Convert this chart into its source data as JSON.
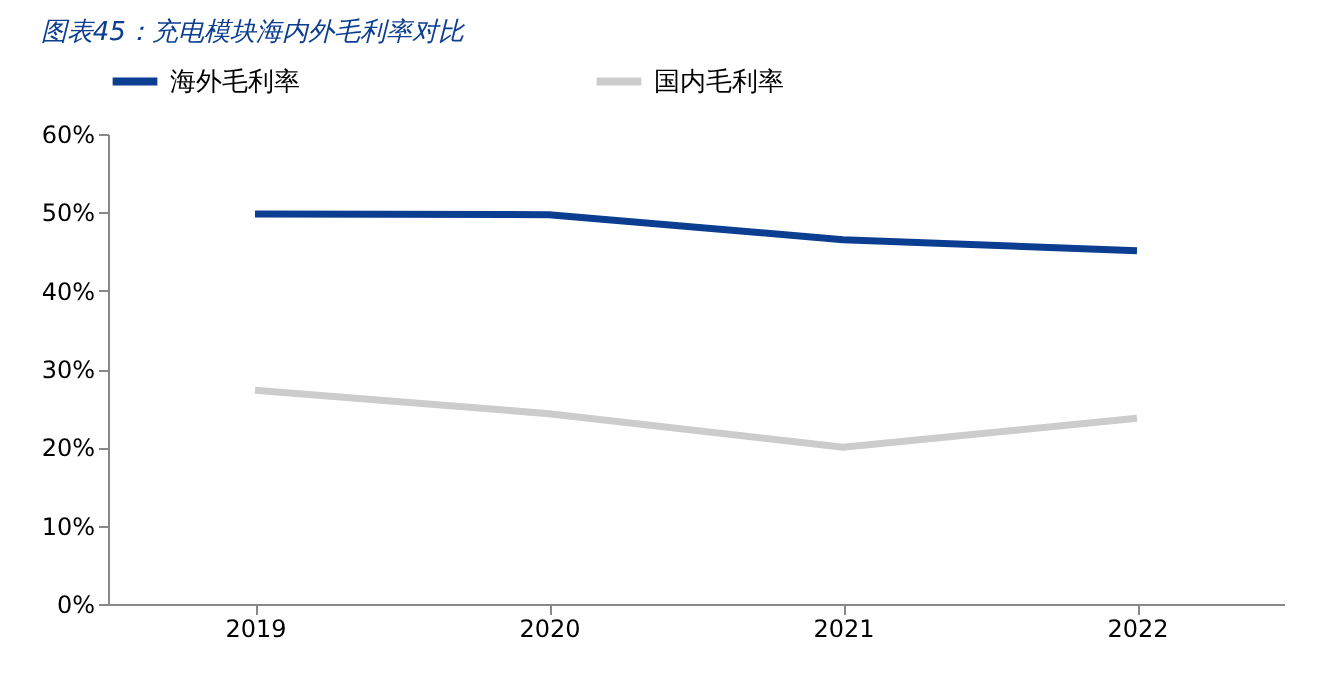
{
  "chart_data": {
    "type": "line",
    "title": "图表45：充电模块海内外毛利率对比",
    "categories": [
      "2019",
      "2020",
      "2021",
      "2022"
    ],
    "series": [
      {
        "name": "海外毛利率",
        "color": "#0b3d91",
        "values": [
          49.8,
          49.7,
          46.5,
          45.1
        ]
      },
      {
        "name": "国内毛利率",
        "color": "#cccccc",
        "values": [
          27.3,
          24.3,
          20.0,
          23.7
        ]
      }
    ],
    "ylim": [
      0,
      60
    ],
    "yticks": [
      {
        "value": 0,
        "label": "0%"
      },
      {
        "value": 10,
        "label": "10%"
      },
      {
        "value": 20,
        "label": "20%"
      },
      {
        "value": 30,
        "label": "30%"
      },
      {
        "value": 40,
        "label": "40%"
      },
      {
        "value": 50,
        "label": "50%"
      },
      {
        "value": 60,
        "label": "60%"
      }
    ],
    "grid": false,
    "legend": "top",
    "marker": "none",
    "line_style": "solid"
  }
}
